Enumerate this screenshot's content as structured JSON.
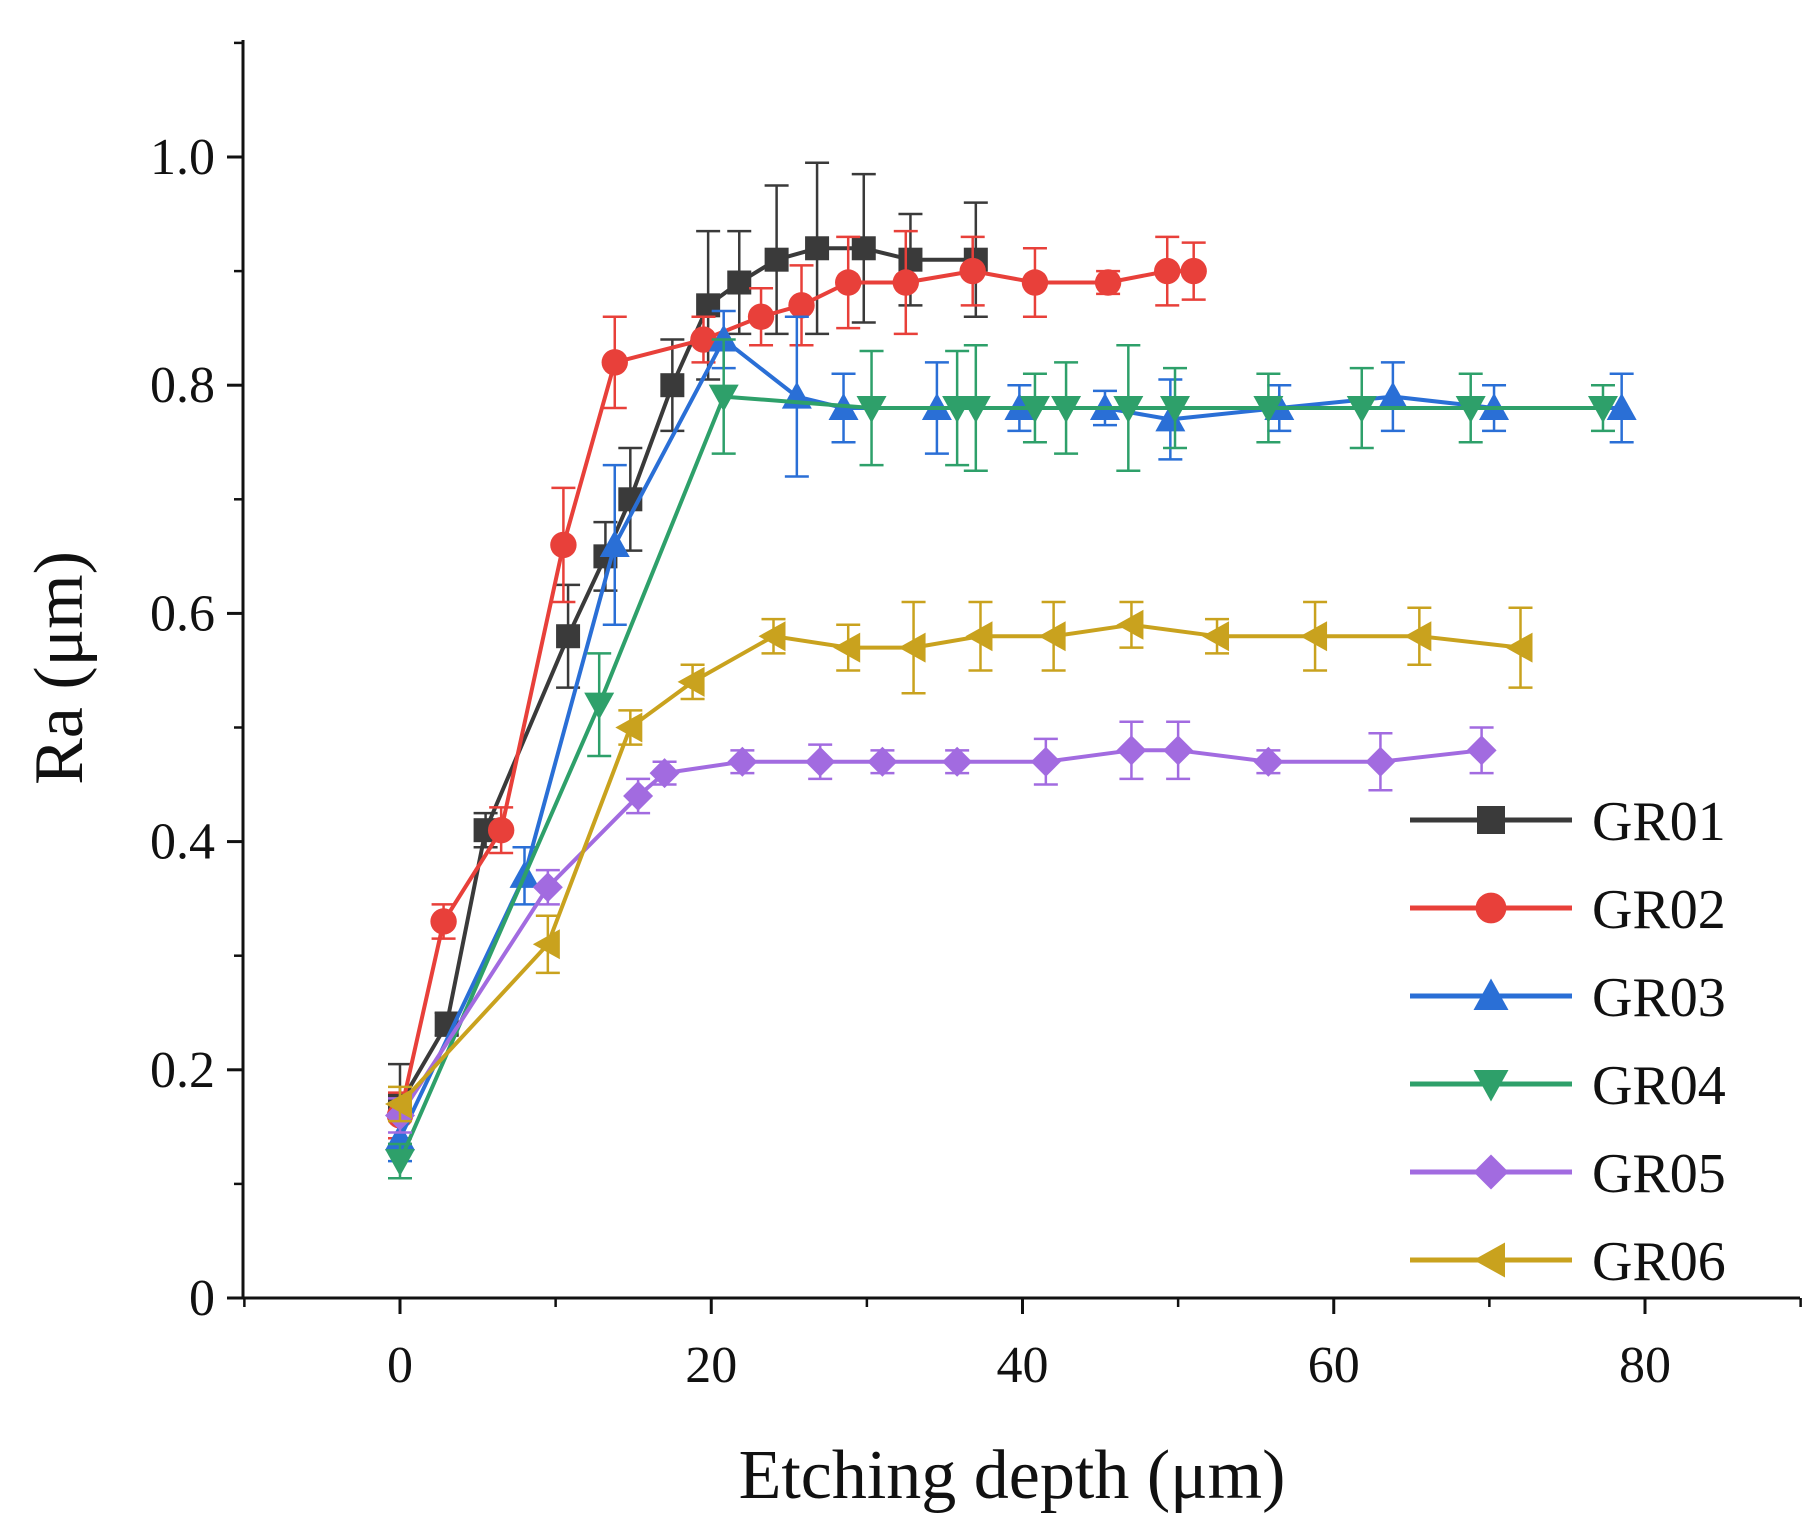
{
  "chart_data": {
    "type": "line",
    "xlabel": "Etching depth (μm)",
    "ylabel": "Ra (μm)",
    "xlim": [
      -10,
      90
    ],
    "ylim": [
      0,
      1.1
    ],
    "xticks": [
      0,
      20,
      40,
      60,
      80
    ],
    "xtick_labels": [
      "0",
      "20",
      "40",
      "60",
      "80"
    ],
    "yticks": [
      0,
      0.2,
      0.4,
      0.6,
      0.8,
      1.0
    ],
    "ytick_labels": [
      "0",
      "0.2",
      "0.4",
      "0.6",
      "0.8",
      "1.0"
    ],
    "legend_position": "right",
    "series": [
      {
        "name": "GR01",
        "color": "#3a3a3a",
        "marker": "square",
        "x": [
          0,
          3,
          5.5,
          10.8,
          13.2,
          14.8,
          17.5,
          19.8,
          21.8,
          24.2,
          26.8,
          29.8,
          32.8,
          37
        ],
        "y": [
          0.17,
          0.24,
          0.41,
          0.58,
          0.65,
          0.7,
          0.8,
          0.87,
          0.89,
          0.91,
          0.92,
          0.92,
          0.91,
          0.91
        ],
        "err": [
          0.035,
          0.01,
          0.015,
          0.045,
          0.03,
          0.045,
          0.04,
          0.065,
          0.045,
          0.065,
          0.075,
          0.065,
          0.04,
          0.05
        ]
      },
      {
        "name": "GR02",
        "color": "#e8403a",
        "marker": "circle",
        "x": [
          0,
          2.8,
          6.5,
          10.5,
          13.8,
          19.5,
          23.2,
          25.8,
          28.8,
          32.5,
          36.8,
          40.8,
          45.5,
          49.3,
          51
        ],
        "y": [
          0.16,
          0.33,
          0.41,
          0.66,
          0.82,
          0.84,
          0.86,
          0.87,
          0.89,
          0.89,
          0.9,
          0.89,
          0.89,
          0.9,
          0.9
        ],
        "err": [
          0.02,
          0.015,
          0.02,
          0.05,
          0.04,
          0.02,
          0.025,
          0.035,
          0.04,
          0.045,
          0.03,
          0.03,
          0.01,
          0.03,
          0.025
        ]
      },
      {
        "name": "GR03",
        "color": "#2a6fd6",
        "marker": "triangle-up",
        "x": [
          0,
          8,
          13.8,
          20.8,
          25.5,
          28.5,
          34.5,
          39.8,
          45.3,
          49.5,
          56.5,
          63.8,
          70.3,
          78.5
        ],
        "y": [
          0.14,
          0.37,
          0.66,
          0.84,
          0.79,
          0.78,
          0.78,
          0.78,
          0.78,
          0.77,
          0.78,
          0.79,
          0.78,
          0.78
        ],
        "err": [
          0.02,
          0.025,
          0.07,
          0.025,
          0.07,
          0.03,
          0.04,
          0.02,
          0.015,
          0.035,
          0.02,
          0.03,
          0.02,
          0.03
        ]
      },
      {
        "name": "GR04",
        "color": "#2ea06a",
        "marker": "triangle-down",
        "x": [
          0,
          12.8,
          20.8,
          30.3,
          35.8,
          37,
          40.8,
          42.8,
          46.8,
          49.8,
          55.8,
          61.8,
          68.8,
          77.3
        ],
        "y": [
          0.12,
          0.52,
          0.79,
          0.78,
          0.78,
          0.78,
          0.78,
          0.78,
          0.78,
          0.78,
          0.78,
          0.78,
          0.78,
          0.78
        ],
        "err": [
          0.015,
          0.045,
          0.05,
          0.05,
          0.05,
          0.055,
          0.03,
          0.04,
          0.055,
          0.035,
          0.03,
          0.035,
          0.03,
          0.02
        ]
      },
      {
        "name": "GR05",
        "color": "#a26be0",
        "marker": "diamond",
        "x": [
          0,
          9.5,
          15.3,
          17,
          22,
          27,
          31,
          35.8,
          41.5,
          47,
          50,
          55.8,
          63,
          69.5
        ],
        "y": [
          0.16,
          0.36,
          0.44,
          0.46,
          0.47,
          0.47,
          0.47,
          0.47,
          0.47,
          0.48,
          0.48,
          0.47,
          0.47,
          0.48
        ],
        "err": [
          0.015,
          0.015,
          0.015,
          0.01,
          0.01,
          0.015,
          0.01,
          0.01,
          0.02,
          0.025,
          0.025,
          0.01,
          0.025,
          0.02
        ]
      },
      {
        "name": "GR06",
        "color": "#c9a21e",
        "marker": "triangle-left",
        "x": [
          0,
          9.5,
          14.8,
          18.8,
          24,
          28.8,
          33,
          37.3,
          42,
          47,
          52.5,
          58.8,
          65.5,
          72
        ],
        "y": [
          0.17,
          0.31,
          0.5,
          0.54,
          0.58,
          0.57,
          0.57,
          0.58,
          0.58,
          0.59,
          0.58,
          0.58,
          0.58,
          0.57
        ],
        "err": [
          0.015,
          0.025,
          0.015,
          0.015,
          0.015,
          0.02,
          0.04,
          0.03,
          0.03,
          0.02,
          0.015,
          0.03,
          0.025,
          0.035
        ]
      }
    ]
  }
}
